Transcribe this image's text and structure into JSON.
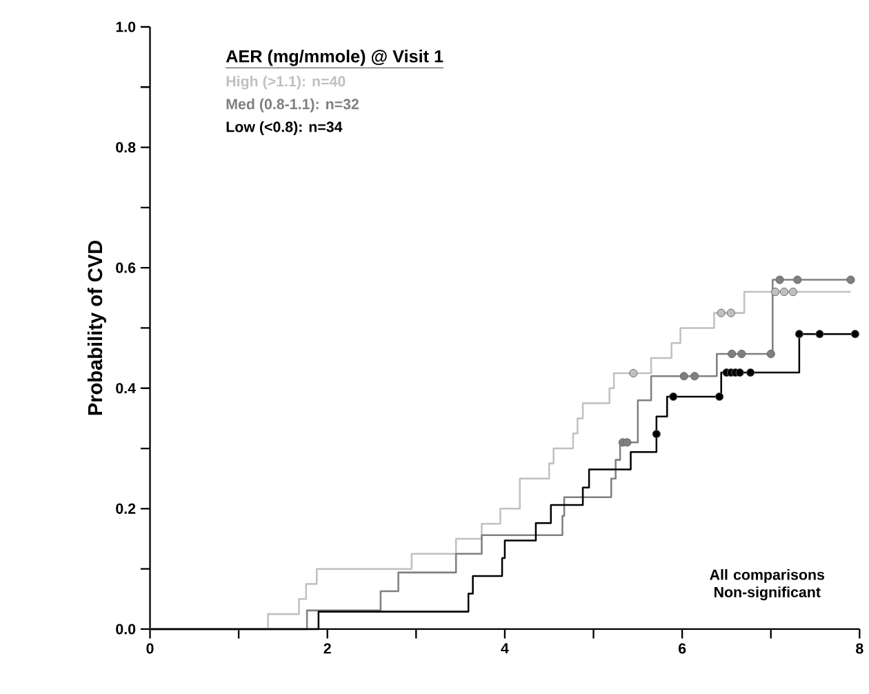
{
  "chart_data": {
    "type": "step",
    "ylabel": "Probability of CVD",
    "legend_title": "AER (mg/mmole) @ Visit 1",
    "legend": "top left",
    "xlim": [
      0,
      8
    ],
    "ylim": [
      0,
      1
    ],
    "xticks": [
      0,
      {
        "value": 1,
        "label": null
      },
      2,
      {
        "value": 3,
        "label": null
      },
      4,
      {
        "value": 5,
        "label": null
      },
      6,
      {
        "value": 7,
        "label": null
      },
      8
    ],
    "yticks": [
      {
        "value": 0,
        "label": "0.0"
      },
      {
        "value": 0.1,
        "label": null
      },
      {
        "value": 0.2,
        "label": "0.2"
      },
      {
        "value": 0.3,
        "label": null
      },
      {
        "value": 0.4,
        "label": "0.4"
      },
      {
        "value": 0.5,
        "label": null
      },
      {
        "value": 0.6,
        "label": "0.6"
      },
      {
        "value": 0.7,
        "label": null
      },
      {
        "value": 0.8,
        "label": "0.8"
      },
      {
        "value": 0.9,
        "label": null
      },
      {
        "value": 1.0,
        "label": "1.0"
      }
    ],
    "annotations": [
      "All comparisons Non-significant"
    ],
    "series": [
      {
        "name": "High (>1.1): n=40",
        "color": "#c0c0c0",
        "x": [
          0,
          1.33,
          1.68,
          1.76,
          1.88,
          2.95,
          3.45,
          3.74,
          3.95,
          4.17,
          4.5,
          4.55,
          4.77,
          4.82,
          4.88,
          5.18,
          5.23,
          5.65,
          5.88,
          5.98,
          6.36,
          6.7,
          7.9
        ],
        "values": [
          0,
          0.025,
          0.05,
          0.075,
          0.1,
          0.125,
          0.15,
          0.175,
          0.2,
          0.25,
          0.275,
          0.3,
          0.325,
          0.35,
          0.375,
          0.4,
          0.425,
          0.45,
          0.475,
          0.5,
          0.525,
          0.56,
          0.56
        ]
      },
      {
        "name": "Med (0.8-1.1): n=32",
        "color": "#7f7f7f",
        "x": [
          0,
          1.77,
          2.6,
          2.8,
          3.45,
          3.74,
          4.65,
          4.67,
          5.2,
          5.25,
          5.3,
          5.5,
          5.65,
          6.39,
          7.02,
          7.9
        ],
        "values": [
          0,
          0.031,
          0.063,
          0.094,
          0.125,
          0.156,
          0.188,
          0.219,
          0.25,
          0.281,
          0.31,
          0.38,
          0.42,
          0.457,
          0.58,
          0.58
        ]
      },
      {
        "name": "Low (<0.8): n=34",
        "color": "#000000",
        "x": [
          0,
          1.9,
          3.59,
          3.64,
          3.97,
          4.0,
          4.35,
          4.52,
          4.88,
          4.95,
          5.42,
          5.71,
          5.83,
          6.44,
          7.32,
          7.95
        ],
        "values": [
          0,
          0.029,
          0.059,
          0.088,
          0.118,
          0.147,
          0.176,
          0.206,
          0.235,
          0.265,
          0.294,
          0.353,
          0.386,
          0.426,
          0.49,
          0.49
        ]
      },
      {
        "type": "scatter",
        "color": "#c0c0c0",
        "x": [
          5.45,
          6.44,
          6.55,
          7.05,
          7.15,
          7.25
        ],
        "values": [
          0.425,
          0.525,
          0.525,
          0.56,
          0.56,
          0.56
        ]
      },
      {
        "type": "scatter",
        "color": "#7f7f7f",
        "x": [
          5.33,
          5.38,
          6.02,
          6.14,
          6.56,
          6.67,
          7.0,
          7.1,
          7.3,
          7.9
        ],
        "values": [
          0.31,
          0.31,
          0.42,
          0.42,
          0.457,
          0.457,
          0.457,
          0.58,
          0.58,
          0.58
        ]
      },
      {
        "type": "scatter",
        "color": "#000000",
        "x": [
          5.71,
          5.9,
          6.39,
          6.42,
          6.5,
          6.55,
          6.6,
          6.65,
          6.77,
          7.32,
          7.55,
          7.95
        ],
        "values": [
          0.324,
          0.386,
          null,
          0.386,
          0.426,
          0.426,
          0.426,
          0.426,
          0.426,
          0.49,
          0.49,
          0.49
        ]
      }
    ]
  }
}
